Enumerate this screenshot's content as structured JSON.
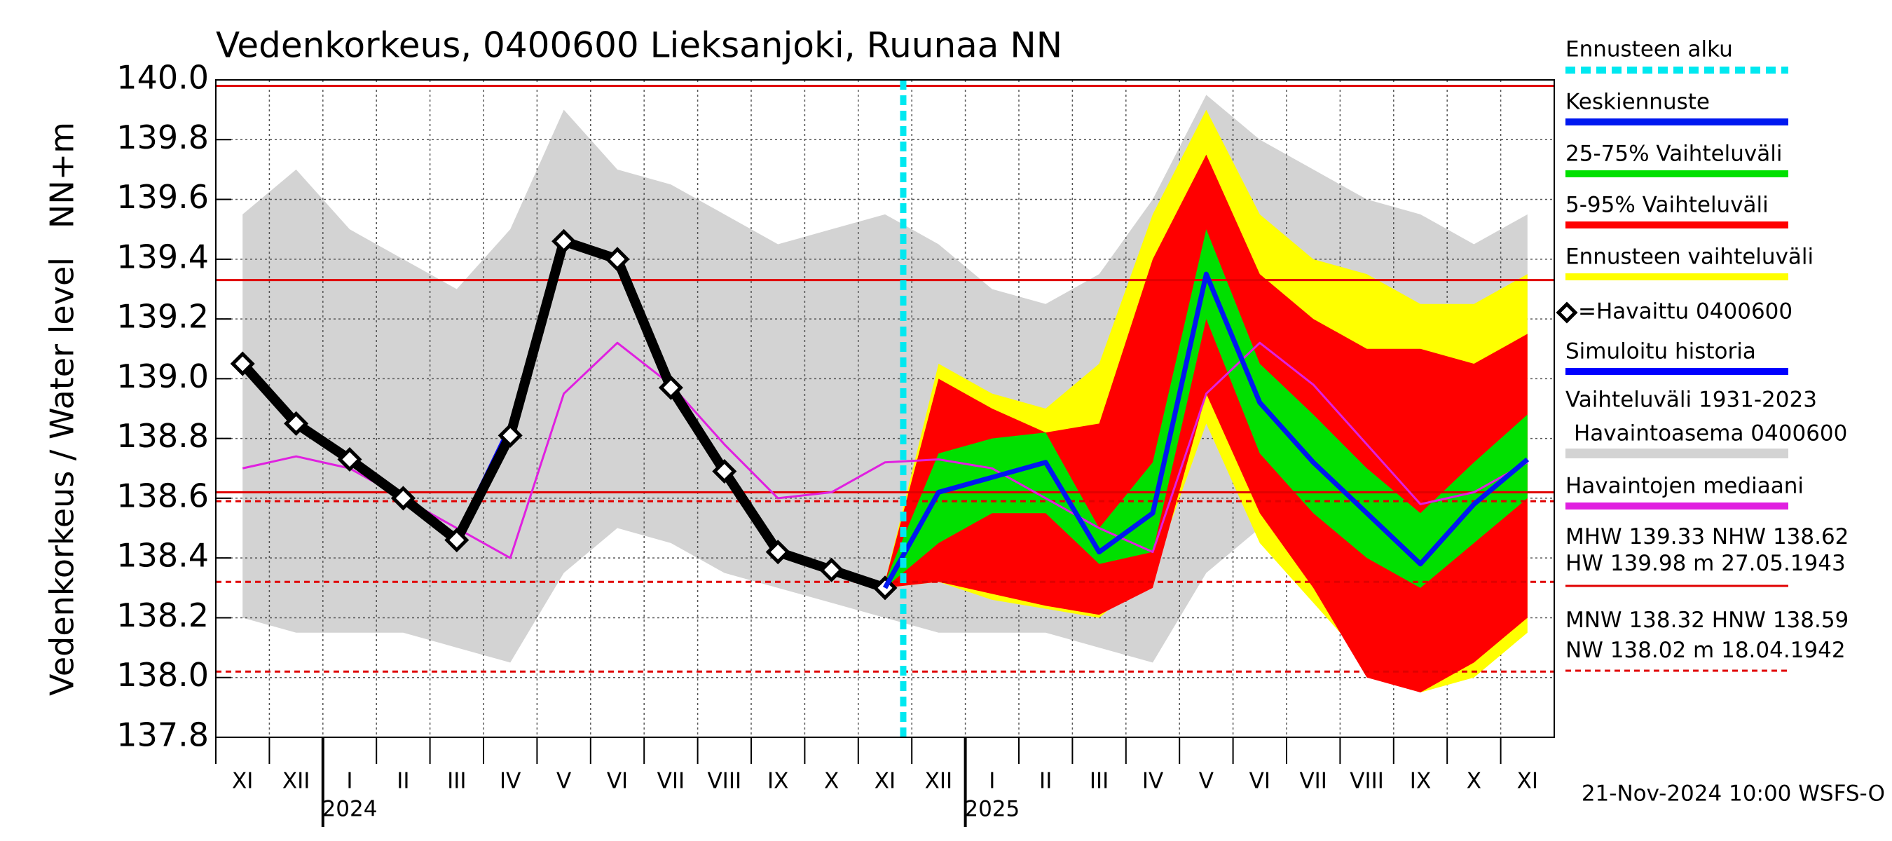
{
  "chart_data": {
    "type": "line",
    "title": "Vedenkorkeus, 0400600 Lieksanjoki, Ruunaa NN",
    "y_label": "Vedenkorkeus / Water level",
    "y_unit_label": "NN+m",
    "footer": "21-Nov-2024 10:00 WSFS-O",
    "forecast_start_label": "Ennusteen alku",
    "forecast_start_color": "#00e8f0",
    "categories": [
      "XI",
      "XII",
      "I",
      "II",
      "III",
      "IV",
      "V",
      "VI",
      "VII",
      "VIII",
      "IX",
      "X",
      "XI",
      "XII",
      "I",
      "II",
      "III",
      "IV",
      "V",
      "VI",
      "VII",
      "VIII",
      "IX",
      "X",
      "XI"
    ],
    "year_categories": [
      null,
      null,
      "2024",
      null,
      null,
      null,
      null,
      null,
      null,
      null,
      null,
      null,
      null,
      null,
      "2025",
      null,
      null,
      null,
      null,
      null,
      null,
      null,
      null,
      null,
      null
    ],
    "ylim": [
      137.8,
      140.0
    ],
    "yticks": [
      {
        "value": 137.8,
        "label": "137.8"
      },
      {
        "value": 138,
        "label": "138.0"
      },
      138.2,
      138.4,
      138.6,
      138.8,
      {
        "value": 139,
        "label": "139.0"
      },
      139.2,
      139.4,
      139.6,
      139.8,
      {
        "value": 140,
        "label": "140.0"
      }
    ],
    "grid": true,
    "bands": [
      {
        "name": "Vaihteluväli 1931-2023",
        "subname": "Havaintoasema 0400600",
        "color": "#d3d3d3",
        "upper": [
          139.55,
          139.7,
          139.5,
          139.4,
          139.3,
          139.5,
          139.9,
          139.7,
          139.65,
          139.55,
          139.45,
          139.5,
          139.55,
          139.45,
          139.3,
          139.25,
          139.35,
          139.6,
          139.95,
          139.8,
          139.7,
          139.6,
          139.55,
          139.45,
          139.55
        ],
        "lower": [
          138.2,
          138.15,
          138.15,
          138.15,
          138.1,
          138.05,
          138.35,
          138.5,
          138.45,
          138.35,
          138.3,
          138.25,
          138.2,
          138.15,
          138.15,
          138.15,
          138.1,
          138.05,
          138.35,
          138.5,
          138.45,
          138.35,
          138.3,
          138.25,
          138.2
        ]
      },
      {
        "name": "Ennusteen vaihteluväli",
        "color": "#ffff00",
        "upper": [
          null,
          null,
          null,
          null,
          null,
          null,
          null,
          null,
          null,
          null,
          null,
          null,
          138.32,
          139.05,
          138.95,
          138.9,
          139.05,
          139.55,
          139.9,
          139.55,
          139.4,
          139.35,
          139.25,
          139.25,
          139.35
        ],
        "lower": [
          null,
          null,
          null,
          null,
          null,
          null,
          null,
          null,
          null,
          null,
          null,
          null,
          138.3,
          138.32,
          138.26,
          138.23,
          138.2,
          138.35,
          138.85,
          138.45,
          138.25,
          138.05,
          137.95,
          138.0,
          138.15
        ]
      },
      {
        "name": "5-95% Vaihteluväli",
        "color": "#ff0000",
        "upper": [
          null,
          null,
          null,
          null,
          null,
          null,
          null,
          null,
          null,
          null,
          null,
          null,
          138.32,
          139.0,
          138.9,
          138.82,
          138.85,
          139.4,
          139.75,
          139.35,
          139.2,
          139.1,
          139.1,
          139.05,
          139.15
        ],
        "lower": [
          null,
          null,
          null,
          null,
          null,
          null,
          null,
          null,
          null,
          null,
          null,
          null,
          138.3,
          138.32,
          138.28,
          138.24,
          138.21,
          138.3,
          138.95,
          138.55,
          138.3,
          138.0,
          137.95,
          138.05,
          138.2
        ]
      },
      {
        "name": "25-75% Vaihteluväli",
        "color": "#00e000",
        "upper": [
          null,
          null,
          null,
          null,
          null,
          null,
          null,
          null,
          null,
          null,
          null,
          null,
          138.32,
          138.75,
          138.8,
          138.82,
          138.5,
          138.72,
          139.5,
          139.05,
          138.88,
          138.7,
          138.55,
          138.72,
          138.88
        ],
        "lower": [
          null,
          null,
          null,
          null,
          null,
          null,
          null,
          null,
          null,
          null,
          null,
          null,
          138.3,
          138.45,
          138.55,
          138.55,
          138.38,
          138.42,
          139.2,
          138.75,
          138.55,
          138.4,
          138.3,
          138.45,
          138.6
        ]
      }
    ],
    "series": [
      {
        "name": "Havaintojen mediaani",
        "color": "#e020e0",
        "width": 3,
        "values": [
          138.7,
          138.74,
          138.7,
          138.6,
          138.5,
          138.4,
          138.95,
          139.12,
          138.98,
          138.78,
          138.6,
          138.62,
          138.72,
          138.73,
          138.7,
          138.6,
          138.5,
          138.42,
          138.95,
          139.12,
          138.98,
          138.78,
          138.58,
          138.62,
          138.72
        ]
      },
      {
        "name": "Simuloitu historia",
        "color": "#0000ff",
        "width": 7,
        "values": [
          139.06,
          138.86,
          138.73,
          138.6,
          138.47,
          138.84,
          139.47,
          139.4,
          138.97,
          138.69,
          138.42,
          138.36,
          138.3,
          null,
          null,
          null,
          null,
          null,
          null,
          null,
          null,
          null,
          null,
          null,
          null
        ]
      },
      {
        "name": "=Havaittu 0400600",
        "color": "#000000",
        "width": 14,
        "marker": "diamond",
        "values": [
          139.05,
          138.85,
          138.73,
          138.6,
          138.46,
          138.81,
          139.46,
          139.4,
          138.97,
          138.69,
          138.42,
          138.36,
          138.3,
          null,
          null,
          null,
          null,
          null,
          null,
          null,
          null,
          null,
          null,
          null,
          null
        ]
      },
      {
        "name": "Keskiennuste",
        "color": "#0018f0",
        "width": 7,
        "values": [
          null,
          null,
          null,
          null,
          null,
          null,
          null,
          null,
          null,
          null,
          null,
          null,
          138.3,
          138.62,
          138.67,
          138.72,
          138.42,
          138.55,
          139.35,
          138.92,
          138.72,
          138.55,
          138.38,
          138.58,
          138.73
        ]
      }
    ],
    "references": [
      {
        "label": "MHW",
        "value": 139.33,
        "dashed": false,
        "color": "#e00000"
      },
      {
        "label": "NHW",
        "value": 138.62,
        "dashed": false,
        "color": "#e00000"
      },
      {
        "label": "HW",
        "value": 139.98,
        "unit": "m",
        "date": "27.05.1943",
        "dashed": false,
        "color": "#e00000"
      },
      {
        "label": "MNW",
        "value": 138.32,
        "dashed": true,
        "color": "#e00000"
      },
      {
        "label": "HNW",
        "value": 138.59,
        "dashed": true,
        "color": "#e00000"
      },
      {
        "label": "NW",
        "value": 138.02,
        "unit": "m",
        "date": "18.04.1942",
        "dashed": true,
        "color": "#e00000"
      }
    ]
  }
}
